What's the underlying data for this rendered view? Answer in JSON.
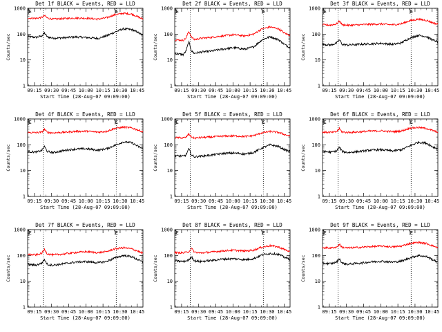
{
  "figure": {
    "background": "#ffffff",
    "axis_color": "#000000",
    "series_colors": {
      "events": "#000000",
      "lld": "#ff0000"
    }
  },
  "chart_data": [
    {
      "type": "line",
      "title": "Det 1f BLACK = Events, RED = LLD",
      "xlabel": "Start Time (28-Aug-07 09:09:00)",
      "ylabel": "Counts/sec",
      "yscale": "log",
      "ylim": [
        1,
        1000
      ],
      "y_ticks": [
        "1",
        "10",
        "100",
        "1000"
      ],
      "x_ticks": [
        "09:15",
        "09:30",
        "09:45",
        "10:00",
        "10:15",
        "10:30",
        "10:45"
      ],
      "xlim_minutes": [
        9,
        50
      ],
      "markers": [
        "E",
        "E"
      ],
      "vlines_minutes": [
        14.5,
        40.5
      ],
      "series": [
        {
          "name": "Events",
          "color": "#000000",
          "x": [
            9,
            12,
            14,
            15,
            16,
            18,
            22,
            26,
            30,
            34,
            37,
            40,
            43,
            46,
            48,
            50
          ],
          "values": [
            80,
            75,
            85,
            110,
            78,
            70,
            72,
            78,
            74,
            68,
            85,
            120,
            160,
            150,
            120,
            90
          ]
        },
        {
          "name": "LLD",
          "color": "#ff0000",
          "x": [
            9,
            12,
            14,
            15,
            16,
            18,
            22,
            26,
            30,
            34,
            37,
            40,
            43,
            46,
            48,
            50
          ],
          "values": [
            420,
            410,
            440,
            520,
            420,
            380,
            400,
            420,
            410,
            380,
            430,
            560,
            640,
            600,
            480,
            380
          ]
        }
      ]
    },
    {
      "type": "line",
      "title": "Det 2f BLACK = Events, RED = LLD",
      "xlabel": "Start Time (28-Aug-07 09:09:00)",
      "ylabel": "Counts/sec",
      "yscale": "log",
      "ylim": [
        1,
        1000
      ],
      "y_ticks": [
        "1",
        "10",
        "100",
        "1000"
      ],
      "x_ticks": [
        "09:15",
        "09:30",
        "09:45",
        "10:00",
        "10:15",
        "10:30",
        "10:45"
      ],
      "xlim_minutes": [
        9,
        50
      ],
      "markers": [
        "E",
        "E"
      ],
      "vlines_minutes": [
        14.5,
        40.5
      ],
      "series": [
        {
          "name": "Events",
          "color": "#000000",
          "x": [
            9,
            12,
            13,
            14,
            15,
            16,
            18,
            22,
            26,
            30,
            34,
            37,
            40,
            43,
            46,
            48,
            50
          ],
          "values": [
            18,
            16,
            22,
            50,
            22,
            18,
            20,
            22,
            26,
            30,
            26,
            32,
            60,
            80,
            60,
            40,
            30
          ]
        },
        {
          "name": "LLD",
          "color": "#ff0000",
          "x": [
            9,
            12,
            13,
            14,
            15,
            16,
            18,
            22,
            26,
            30,
            34,
            37,
            40,
            43,
            46,
            48,
            50
          ],
          "values": [
            60,
            58,
            70,
            130,
            75,
            62,
            68,
            75,
            85,
            95,
            85,
            100,
            160,
            190,
            160,
            110,
            90
          ]
        }
      ]
    },
    {
      "type": "line",
      "title": "Det 3f BLACK = Events, RED = LLD",
      "xlabel": "Start Time (28-Aug-07 09:09:00)",
      "ylabel": "Counts/sec",
      "yscale": "log",
      "ylim": [
        1,
        1000
      ],
      "y_ticks": [
        "1",
        "10",
        "100",
        "1000"
      ],
      "x_ticks": [
        "09:15",
        "09:30",
        "09:45",
        "10:00",
        "10:15",
        "10:30",
        "10:45"
      ],
      "xlim_minutes": [
        9,
        50
      ],
      "markers": [
        "E",
        "E"
      ],
      "vlines_minutes": [
        14.5,
        40.5
      ],
      "series": [
        {
          "name": "Events",
          "color": "#000000",
          "x": [
            9,
            12,
            14,
            15,
            16,
            18,
            22,
            26,
            30,
            34,
            37,
            40,
            43,
            46,
            48,
            50
          ],
          "values": [
            40,
            38,
            45,
            60,
            40,
            38,
            40,
            42,
            44,
            40,
            46,
            70,
            90,
            80,
            60,
            50
          ]
        },
        {
          "name": "LLD",
          "color": "#ff0000",
          "x": [
            9,
            12,
            14,
            15,
            16,
            18,
            22,
            26,
            30,
            34,
            37,
            40,
            43,
            46,
            48,
            50
          ],
          "values": [
            230,
            225,
            250,
            320,
            230,
            220,
            230,
            240,
            245,
            230,
            250,
            330,
            380,
            340,
            280,
            240
          ]
        }
      ]
    },
    {
      "type": "line",
      "title": "Det 4f BLACK = Events, RED = LLD",
      "xlabel": "Start Time (28-Aug-07 09:09:00)",
      "ylabel": "Counts/sec",
      "yscale": "log",
      "ylim": [
        1,
        1000
      ],
      "y_ticks": [
        "1",
        "10",
        "100",
        "1000"
      ],
      "x_ticks": [
        "09:15",
        "09:30",
        "09:45",
        "10:00",
        "10:15",
        "10:30",
        "10:45"
      ],
      "xlim_minutes": [
        9,
        50
      ],
      "markers": [
        "E",
        "E"
      ],
      "vlines_minutes": [
        14.5,
        40.5
      ],
      "series": [
        {
          "name": "Events",
          "color": "#000000",
          "x": [
            9,
            12,
            14,
            15,
            16,
            18,
            22,
            26,
            30,
            34,
            37,
            40,
            43,
            46,
            48,
            50
          ],
          "values": [
            55,
            52,
            60,
            85,
            55,
            50,
            60,
            68,
            70,
            62,
            70,
            95,
            130,
            120,
            90,
            70
          ]
        },
        {
          "name": "LLD",
          "color": "#ff0000",
          "x": [
            9,
            12,
            14,
            15,
            16,
            18,
            22,
            26,
            30,
            34,
            37,
            40,
            43,
            46,
            48,
            50
          ],
          "values": [
            300,
            295,
            310,
            400,
            300,
            290,
            305,
            330,
            335,
            310,
            330,
            430,
            480,
            450,
            380,
            320
          ]
        }
      ]
    },
    {
      "type": "line",
      "title": "Det 5f BLACK = Events, RED = LLD",
      "xlabel": "Start Time (28-Aug-07 09:09:00)",
      "ylabel": "Counts/sec",
      "yscale": "log",
      "ylim": [
        1,
        1000
      ],
      "y_ticks": [
        "1",
        "10",
        "100",
        "1000"
      ],
      "x_ticks": [
        "09:15",
        "09:30",
        "09:45",
        "10:00",
        "10:15",
        "10:30",
        "10:45"
      ],
      "xlim_minutes": [
        9,
        50
      ],
      "markers": [
        "E",
        "E"
      ],
      "vlines_minutes": [
        14.5,
        40.5
      ],
      "series": [
        {
          "name": "Events",
          "color": "#000000",
          "x": [
            9,
            12,
            13,
            14,
            15,
            16,
            18,
            22,
            26,
            30,
            34,
            37,
            40,
            43,
            46,
            48,
            50
          ],
          "values": [
            38,
            36,
            40,
            70,
            40,
            34,
            36,
            40,
            46,
            48,
            44,
            50,
            75,
            100,
            85,
            65,
            55
          ]
        },
        {
          "name": "LLD",
          "color": "#ff0000",
          "x": [
            9,
            12,
            13,
            14,
            15,
            16,
            18,
            22,
            26,
            30,
            34,
            37,
            40,
            43,
            46,
            48,
            50
          ],
          "values": [
            190,
            185,
            195,
            260,
            200,
            180,
            190,
            200,
            215,
            220,
            210,
            225,
            290,
            330,
            300,
            250,
            220
          ]
        }
      ]
    },
    {
      "type": "line",
      "title": "Det 6f BLACK = Events, RED = LLD",
      "xlabel": "Start Time (28-Aug-07 09:09:00)",
      "ylabel": "Counts/sec",
      "yscale": "log",
      "ylim": [
        1,
        1000
      ],
      "y_ticks": [
        "1",
        "10",
        "100",
        "1000"
      ],
      "x_ticks": [
        "09:15",
        "09:30",
        "09:45",
        "10:00",
        "10:15",
        "10:30",
        "10:45"
      ],
      "xlim_minutes": [
        9,
        50
      ],
      "markers": [
        "E",
        "E"
      ],
      "vlines_minutes": [
        14.5,
        40.5
      ],
      "series": [
        {
          "name": "Events",
          "color": "#000000",
          "x": [
            9,
            12,
            14,
            15,
            16,
            18,
            22,
            26,
            30,
            34,
            37,
            40,
            43,
            46,
            48,
            50
          ],
          "values": [
            55,
            52,
            58,
            80,
            55,
            50,
            55,
            62,
            64,
            58,
            64,
            90,
            125,
            115,
            85,
            70
          ]
        },
        {
          "name": "LLD",
          "color": "#ff0000",
          "x": [
            9,
            12,
            14,
            15,
            16,
            18,
            22,
            26,
            30,
            34,
            37,
            40,
            43,
            46,
            48,
            50
          ],
          "values": [
            310,
            300,
            320,
            420,
            310,
            300,
            315,
            340,
            345,
            320,
            340,
            440,
            470,
            430,
            360,
            310
          ]
        }
      ]
    },
    {
      "type": "line",
      "title": "Det 7f BLACK = Events, RED = LLD",
      "xlabel": "Start Time (28-Aug-07 09:09:00)",
      "ylabel": "Counts/sec",
      "yscale": "log",
      "ylim": [
        1,
        1000
      ],
      "y_ticks": [
        "1",
        "10",
        "100",
        "1000"
      ],
      "x_ticks": [
        "09:15",
        "09:30",
        "09:45",
        "10:00",
        "10:15",
        "10:30",
        "10:45"
      ],
      "xlim_minutes": [
        9,
        50
      ],
      "markers": [
        "E",
        "E"
      ],
      "vlines_minutes": [
        14.5,
        40.5
      ],
      "series": [
        {
          "name": "Events",
          "color": "#000000",
          "x": [
            9,
            12,
            14,
            15,
            16,
            18,
            22,
            26,
            30,
            34,
            37,
            40,
            43,
            46,
            48,
            50
          ],
          "values": [
            45,
            42,
            50,
            70,
            45,
            42,
            48,
            55,
            58,
            52,
            58,
            80,
            100,
            90,
            70,
            55
          ]
        },
        {
          "name": "LLD",
          "color": "#ff0000",
          "x": [
            9,
            12,
            14,
            15,
            16,
            18,
            22,
            26,
            30,
            34,
            37,
            40,
            43,
            46,
            48,
            50
          ],
          "values": [
            110,
            105,
            120,
            170,
            115,
            105,
            115,
            130,
            140,
            128,
            140,
            180,
            200,
            180,
            150,
            120
          ]
        }
      ]
    },
    {
      "type": "line",
      "title": "Det 8f BLACK = Events, RED = LLD",
      "xlabel": "Start Time (28-Aug-07 09:09:00)",
      "ylabel": "Counts/sec",
      "yscale": "log",
      "ylim": [
        1,
        1000
      ],
      "y_ticks": [
        "1",
        "10",
        "100",
        "1000"
      ],
      "x_ticks": [
        "09:15",
        "09:30",
        "09:45",
        "10:00",
        "10:15",
        "10:30",
        "10:45"
      ],
      "xlim_minutes": [
        9,
        50
      ],
      "markers": [
        "E",
        "E"
      ],
      "vlines_minutes": [
        14.5,
        40.5
      ],
      "series": [
        {
          "name": "Events",
          "color": "#000000",
          "x": [
            9,
            12,
            14,
            15,
            16,
            18,
            22,
            26,
            30,
            34,
            37,
            40,
            43,
            46,
            48,
            50
          ],
          "values": [
            62,
            58,
            66,
            90,
            62,
            58,
            64,
            72,
            75,
            68,
            75,
            105,
            120,
            110,
            85,
            70
          ]
        },
        {
          "name": "LLD",
          "color": "#ff0000",
          "x": [
            9,
            12,
            14,
            15,
            16,
            18,
            22,
            26,
            30,
            34,
            37,
            40,
            43,
            46,
            48,
            50
          ],
          "values": [
            130,
            125,
            140,
            185,
            135,
            125,
            135,
            150,
            160,
            148,
            160,
            210,
            240,
            210,
            170,
            140
          ]
        }
      ]
    },
    {
      "type": "line",
      "title": "Det 9f BLACK = Events, RED = LLD",
      "xlabel": "Start Time (28-Aug-07 09:09:00)",
      "ylabel": "Counts/sec",
      "yscale": "log",
      "ylim": [
        1,
        1000
      ],
      "y_ticks": [
        "1",
        "10",
        "100",
        "1000"
      ],
      "x_ticks": [
        "09:15",
        "09:30",
        "09:45",
        "10:00",
        "10:15",
        "10:30",
        "10:45"
      ],
      "xlim_minutes": [
        9,
        50
      ],
      "markers": [
        "E",
        "E"
      ],
      "vlines_minutes": [
        14.5,
        40.5
      ],
      "series": [
        {
          "name": "Events",
          "color": "#000000",
          "x": [
            9,
            12,
            14,
            15,
            16,
            18,
            22,
            26,
            30,
            34,
            37,
            40,
            43,
            46,
            48,
            50
          ],
          "values": [
            50,
            48,
            55,
            75,
            50,
            46,
            50,
            56,
            60,
            55,
            60,
            80,
            100,
            90,
            70,
            55
          ]
        },
        {
          "name": "LLD",
          "color": "#ff0000",
          "x": [
            9,
            12,
            14,
            15,
            16,
            18,
            22,
            26,
            30,
            34,
            37,
            40,
            43,
            46,
            48,
            50
          ],
          "values": [
            200,
            195,
            210,
            270,
            205,
            195,
            205,
            220,
            230,
            215,
            230,
            290,
            320,
            290,
            240,
            200
          ]
        }
      ]
    }
  ]
}
